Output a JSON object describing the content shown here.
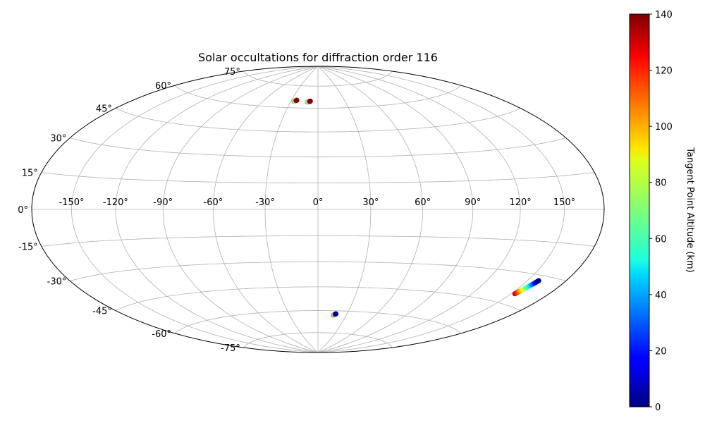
{
  "chart_data": {
    "type": "scatter",
    "projection": "hammer",
    "title": "Solar occultations for diffraction order 116",
    "xlabel": "",
    "ylabel": "",
    "longitude_ticks": [
      -150,
      -120,
      -90,
      -60,
      -30,
      0,
      30,
      60,
      90,
      120,
      150
    ],
    "longitude_tick_labels": [
      "-150°",
      "-120°",
      "-90°",
      "-60°",
      "-30°",
      "0°",
      "30°",
      "60°",
      "90°",
      "120°",
      "150°"
    ],
    "latitude_ticks": [
      -75,
      -60,
      -45,
      -30,
      -15,
      0,
      15,
      30,
      45,
      60,
      75
    ],
    "latitude_tick_labels": [
      "-75°",
      "-60°",
      "-45°",
      "-30°",
      "-15°",
      "0°",
      "15°",
      "30°",
      "45°",
      "60°",
      "75°"
    ],
    "grid": true,
    "colormap": "jet",
    "colorbar": {
      "label": "Tangent Point Altitude (km)",
      "range": [
        0,
        140
      ],
      "ticks": [
        0,
        20,
        40,
        60,
        80,
        100,
        120,
        140
      ],
      "tick_labels": [
        "0",
        "20",
        "40",
        "60",
        "80",
        "100",
        "120",
        "140"
      ],
      "placement": "right"
    },
    "tracks": [
      {
        "lon_start": -26.5,
        "lat_start": 64.3,
        "lon_end": -24.0,
        "lat_end": 65.0,
        "alt_start": 40,
        "alt_end": 140
      },
      {
        "lon_start": -11.5,
        "lat_start": 64.0,
        "lon_end": -8.5,
        "lat_end": 64.6,
        "alt_start": 40,
        "alt_end": 140
      },
      {
        "lon_start": 16.5,
        "lat_start": -62.8,
        "lon_end": 18.6,
        "lat_end": -62.0,
        "alt_start": 130,
        "alt_end": 0
      },
      {
        "lon_start": 153.0,
        "lat_start": -39.8,
        "lon_end": 158.6,
        "lat_end": -32.4,
        "alt_start": 130,
        "alt_end": 0
      }
    ]
  }
}
